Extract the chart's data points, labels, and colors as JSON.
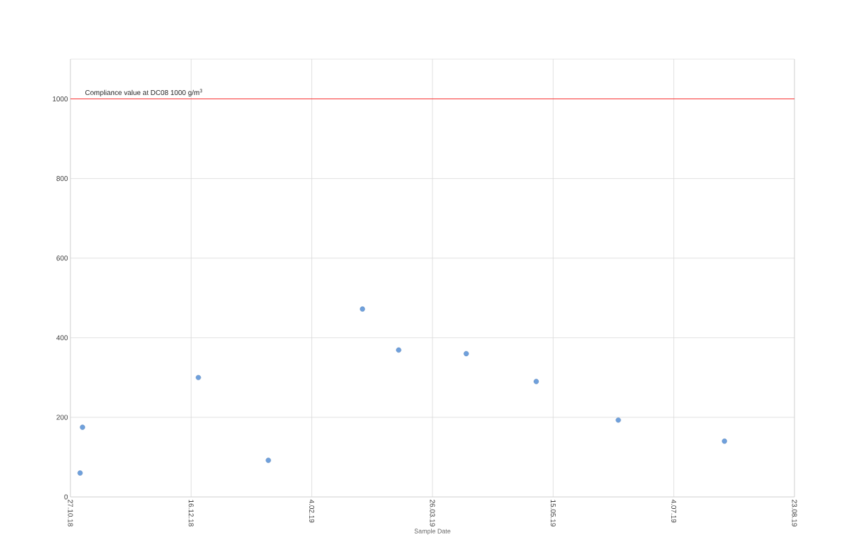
{
  "chart_data": {
    "type": "scatter",
    "xlabel": "Sample Date",
    "x": [
      "2018-10-31",
      "2018-11-01",
      "2018-12-19",
      "2019-01-17",
      "2019-02-25",
      "2019-03-12",
      "2019-04-09",
      "2019-05-08",
      "2019-06-11",
      "2019-07-25"
    ],
    "values": [
      60,
      175,
      300,
      92,
      472,
      369,
      360,
      290,
      193,
      140
    ],
    "color": "#6fa0dc",
    "marker": "circle",
    "grid": true,
    "xlim": [
      "2018-10-27",
      "2019-08-23"
    ],
    "xticks": [
      {
        "value": "2018-10-27",
        "label": "27.10.18"
      },
      {
        "value": "2018-12-16",
        "label": "16.12.18"
      },
      {
        "value": "2019-02-04",
        "label": "4.02.19"
      },
      {
        "value": "2019-03-26",
        "label": "26.03.19"
      },
      {
        "value": "2019-05-15",
        "label": "15.05.19"
      },
      {
        "value": "2019-07-04",
        "label": "4.07.19"
      },
      {
        "value": "2019-08-23",
        "label": "23.08.19"
      }
    ],
    "ylim": [
      0,
      1100
    ],
    "yticks": [
      0,
      200,
      400,
      600,
      800,
      1000
    ],
    "ref_lines": [
      {
        "axis": "y",
        "value": 1000,
        "label": "Compliance value at DC08 1000 g/m$^{3}$",
        "color": "#ff0000"
      }
    ]
  }
}
